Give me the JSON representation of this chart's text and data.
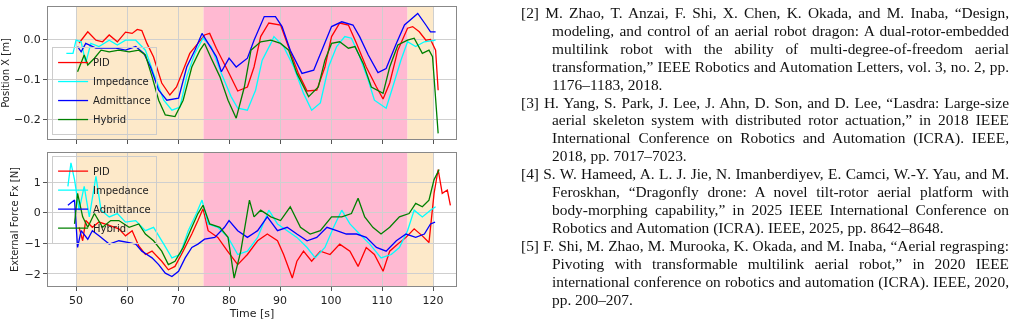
{
  "chart_data": [
    {
      "type": "line",
      "ylabel": "Position X [m]",
      "xlim": [
        44.5,
        124.5
      ],
      "ylim": [
        -0.25,
        0.08
      ],
      "xticks": [
        50,
        60,
        70,
        80,
        90,
        100,
        110,
        120
      ],
      "yticks": [
        {
          "value": -0.2,
          "label": "−0.2"
        },
        {
          "value": -0.1,
          "label": "−0.1"
        },
        {
          "value": 0,
          "label": "0.0"
        }
      ],
      "tick_labels": "y",
      "grid": true,
      "legend": "bottom left",
      "bands": [
        {
          "axis": "x",
          "from": 50,
          "to": 75,
          "color": "#fde9c9"
        },
        {
          "axis": "x",
          "from": 75,
          "to": 115,
          "color": "#ffb9d2"
        },
        {
          "axis": "x",
          "from": 115,
          "to": 120,
          "color": "#fde9c9"
        }
      ],
      "series": [
        {
          "name": "PID",
          "color": "#ff0000",
          "x": [
            50.6,
            52.3,
            53.9,
            55.2,
            56.5,
            58.1,
            59.7,
            61,
            62,
            62.9,
            63.9,
            65.2,
            66.8,
            68.4,
            69.7,
            71,
            72.3,
            73.9,
            75.2,
            76.2,
            77.5,
            79.7,
            81.7,
            83.6,
            84.9,
            86.2,
            87.8,
            90.1,
            91.4,
            93.6,
            95.3,
            97.2,
            98.8,
            100.1,
            101.7,
            103.4,
            105,
            106.9,
            108.9,
            110.2,
            111.5,
            113.1,
            115,
            116,
            117.3,
            118.6,
            119.5,
            120.5,
            121
          ],
          "values": [
            -0.01,
            0.018,
            -0.003,
            -0.007,
            0.01,
            -0.007,
            0.017,
            0.014,
            0.024,
            0.021,
            -0.011,
            -0.045,
            -0.11,
            -0.14,
            -0.12,
            -0.078,
            -0.036,
            -0.011,
            0.01,
            0.014,
            -0.023,
            -0.078,
            -0.13,
            -0.12,
            -0.07,
            0.006,
            0.04,
            0.035,
            -0.011,
            -0.086,
            -0.13,
            -0.128,
            -0.07,
            0.006,
            0.04,
            0.035,
            -0.011,
            -0.07,
            -0.12,
            -0.15,
            -0.11,
            -0.028,
            0.027,
            0.031,
            0.018,
            -0.003,
            -0.001,
            -0.028,
            -0.128
          ]
        },
        {
          "name": "Impedance",
          "color": "#00ffff",
          "x": [
            48.1,
            49.4,
            50,
            51,
            51.9,
            52.9,
            54.5,
            56.5,
            58.1,
            59.7,
            61.7,
            63.6,
            65.2,
            67.2,
            68.8,
            70.4,
            71.7,
            73.3,
            74.9,
            76.5,
            78.5,
            80.4,
            81.7,
            83.6,
            85.2,
            86.5,
            88.2,
            88.8,
            90.7,
            92.7,
            94.6,
            96.2,
            97.9,
            99.5,
            101.1,
            102.7,
            104,
            105.6,
            107.3,
            108.5,
            110.8,
            112.1,
            113.7,
            115,
            116.6,
            118.3,
            120.5
          ],
          "values": [
            -0.036,
            -0.036,
            -0.003,
            -0.007,
            -0.06,
            -0.011,
            -0.019,
            -0.003,
            -0.015,
            -0.003,
            -0.003,
            -0.028,
            -0.086,
            -0.153,
            -0.178,
            -0.17,
            -0.094,
            -0.036,
            0.002,
            -0.019,
            -0.086,
            -0.144,
            -0.173,
            -0.178,
            -0.128,
            -0.053,
            -0.011,
            0.006,
            -0.019,
            -0.07,
            -0.136,
            -0.178,
            -0.16,
            -0.07,
            -0.019,
            0.006,
            0.002,
            -0.044,
            -0.103,
            -0.153,
            -0.173,
            -0.12,
            -0.053,
            -0.007,
            -0.019,
            -0.007,
            -0.003
          ]
        },
        {
          "name": "Admittance",
          "color": "#0000ff",
          "x": [
            50.3,
            51,
            51.9,
            53.9,
            55.8,
            57.8,
            59.7,
            61.7,
            63.3,
            64.6,
            66.2,
            67.8,
            70.1,
            71.7,
            73.3,
            74.7,
            75.9,
            77.5,
            78.5,
            80,
            81.4,
            83.6,
            84.9,
            86.9,
            89.1,
            90.4,
            92,
            94.3,
            96.6,
            98.5,
            100.1,
            102.1,
            104.3,
            105.6,
            107.3,
            109.2,
            110.8,
            112.8,
            114.4,
            117,
            118.6,
            119.5,
            120.5
          ],
          "values": [
            -0.019,
            -0.032,
            -0.011,
            -0.023,
            -0.023,
            -0.023,
            -0.028,
            -0.019,
            -0.036,
            -0.07,
            -0.128,
            -0.153,
            -0.148,
            -0.07,
            -0.028,
            0.014,
            -0.011,
            -0.044,
            -0.082,
            -0.048,
            -0.07,
            -0.048,
            -0.003,
            0.056,
            0.056,
            0.031,
            -0.028,
            -0.086,
            -0.078,
            -0.019,
            0.031,
            0.043,
            0.035,
            0.006,
            -0.04,
            -0.084,
            -0.074,
            -0.011,
            0.035,
            0.064,
            0.035,
            0.018,
            0.018
          ]
        },
        {
          "name": "Hybrid",
          "color": "#008000",
          "x": [
            50.3,
            51.6,
            52.3,
            53.6,
            54.9,
            56.5,
            58.4,
            60.4,
            62.3,
            63.6,
            64.9,
            66.2,
            67.5,
            69.4,
            71,
            72.7,
            74.3,
            75.2,
            76.5,
            78.2,
            79.8,
            81.4,
            83,
            84.3,
            86.2,
            88.2,
            90.1,
            91.7,
            93.3,
            95.6,
            97.5,
            98.8,
            100.1,
            101.7,
            103.4,
            104.7,
            106.3,
            107.9,
            110.2,
            111.5,
            113.1,
            115,
            116.3,
            117.9,
            119.2,
            119.9,
            121
          ],
          "values": [
            -0.082,
            -0.04,
            -0.065,
            -0.048,
            -0.028,
            -0.032,
            -0.028,
            -0.032,
            -0.028,
            -0.04,
            -0.094,
            -0.153,
            -0.19,
            -0.194,
            -0.153,
            -0.07,
            -0.028,
            -0.011,
            -0.048,
            -0.094,
            -0.153,
            -0.198,
            -0.12,
            -0.028,
            -0.007,
            -0.003,
            -0.011,
            -0.028,
            -0.086,
            -0.144,
            -0.12,
            -0.053,
            -0.011,
            -0.007,
            -0.023,
            -0.019,
            -0.061,
            -0.12,
            -0.136,
            -0.07,
            -0.015,
            -0.003,
            0.002,
            -0.036,
            -0.028,
            -0.044,
            -0.236
          ]
        }
      ]
    },
    {
      "type": "line",
      "xlabel": "Time [s]",
      "ylabel": "External Force Fx [N]",
      "xlim": [
        44.5,
        124.5
      ],
      "ylim": [
        -2.4,
        1.95
      ],
      "xticks": [
        50,
        60,
        70,
        80,
        90,
        100,
        110,
        120
      ],
      "yticks": [
        {
          "value": -2,
          "label": "−2"
        },
        {
          "value": -1,
          "label": "−1"
        },
        0,
        1
      ],
      "grid": true,
      "legend": "top left",
      "bands": [
        {
          "axis": "x",
          "from": 50,
          "to": 75,
          "color": "#fde9c9"
        },
        {
          "axis": "x",
          "from": 75,
          "to": 115,
          "color": "#ffb9d2"
        },
        {
          "axis": "x",
          "from": 115,
          "to": 120,
          "color": "#fde9c9"
        }
      ],
      "series": [
        {
          "name": "PID",
          "color": "#ff0000",
          "x": [
            50.6,
            51.3,
            51.9,
            53.2,
            54.5,
            56.5,
            58.4,
            59.7,
            61,
            62.3,
            63.6,
            64.9,
            66.8,
            68.1,
            69.4,
            71,
            72.7,
            73.9,
            74.9,
            75.9,
            77.8,
            79.7,
            81.7,
            83.6,
            85.6,
            87.5,
            89.5,
            90.7,
            92.4,
            93.3,
            94.6,
            96.2,
            97.9,
            99.8,
            101.7,
            103.7,
            105.3,
            106.9,
            108.5,
            110.2,
            111.5,
            113.1,
            114.7,
            116.3,
            117.9,
            119.2,
            120.2,
            121,
            121.8,
            122.8,
            123.4
          ],
          "values": [
            -0.48,
            -0.92,
            -0.26,
            -0.48,
            -0.31,
            -0.42,
            -0.53,
            -0.76,
            -0.59,
            -1.09,
            -1.37,
            -1.26,
            -1.59,
            -1.87,
            -1.76,
            -1.26,
            -0.7,
            -0.26,
            0.13,
            -0.59,
            -0.81,
            -1.26,
            -1.7,
            -1.37,
            -0.92,
            -0.7,
            -0.92,
            -1.37,
            -2.14,
            -1.59,
            -1.26,
            -1.59,
            -1.26,
            -1.37,
            -1.03,
            -1.26,
            -1.76,
            -1.14,
            -1.37,
            -1.92,
            -1.26,
            -1.03,
            -0.81,
            -0.53,
            -0.76,
            -0.98,
            0.63,
            1.41,
            0.63,
            0.74,
            0.24
          ]
        },
        {
          "name": "Impedance",
          "color": "#00ffff",
          "x": [
            48.4,
            49,
            49.7,
            50.6,
            51.6,
            52.6,
            53.9,
            54.9,
            56.5,
            58.1,
            59.7,
            61.7,
            63.6,
            65.2,
            67.2,
            68.8,
            70.4,
            72,
            73.6,
            74.7,
            75.9,
            77.8,
            79.8,
            81.7,
            83.6,
            85.6,
            87.8,
            89.5,
            91.4,
            93.3,
            95.3,
            96.9,
            98.8,
            100.5,
            102.1,
            103.7,
            105.6,
            107.6,
            109.8,
            111.8,
            113.4,
            115,
            116.3,
            117.9,
            119.5,
            120.5
          ],
          "values": [
            0.86,
            1.63,
            1.08,
            0.08,
            0.86,
            -0.14,
            1.19,
            0.08,
            -0.14,
            -0.03,
            -0.31,
            -0.26,
            -0.59,
            -0.48,
            -1.03,
            -1.48,
            -1.37,
            -0.59,
            -0.03,
            0.41,
            -0.37,
            -0.48,
            -0.81,
            -1.37,
            -1.26,
            -0.81,
            0.08,
            -0.37,
            -0.59,
            -0.81,
            -1.14,
            -1.48,
            -1.14,
            -0.48,
            0.08,
            -0.37,
            -0.7,
            -1.03,
            -1.48,
            -1.37,
            -1.14,
            -0.59,
            0.08,
            -0.14,
            0.08,
            0.19
          ]
        },
        {
          "name": "Admittance",
          "color": "#0000ff",
          "x": [
            48.4,
            49.7,
            50.3,
            51,
            52.3,
            53.2,
            54.5,
            56.5,
            58.4,
            60.4,
            61.7,
            62.9,
            64.9,
            66.2,
            67.5,
            68.8,
            70.1,
            71.4,
            72.7,
            73.9,
            75.2,
            77.2,
            79.1,
            80,
            81.7,
            83.6,
            85.6,
            87.5,
            89.5,
            91.4,
            93.3,
            95.3,
            97.2,
            99.2,
            101.1,
            103,
            105,
            106.9,
            108.9,
            110.8,
            112.8,
            114.7,
            116.6,
            118.3,
            119.5,
            120.4
          ],
          "values": [
            0.24,
            0.41,
            -1.14,
            -0.59,
            -0.87,
            -0.59,
            -0.76,
            -1.03,
            -0.92,
            -0.98,
            -1.03,
            -1.26,
            -1.48,
            -1.7,
            -1.98,
            -2.09,
            -1.92,
            -1.48,
            -1.14,
            -1.03,
            -0.87,
            -0.81,
            -0.48,
            -0.26,
            -0.59,
            -0.81,
            -0.59,
            -0.14,
            -0.59,
            -0.48,
            -0.7,
            -0.92,
            -0.81,
            -0.48,
            -0.59,
            -0.7,
            -0.7,
            -0.81,
            -1.14,
            -1.26,
            -0.92,
            -0.7,
            -0.81,
            -0.7,
            -0.37,
            -0.31
          ]
        },
        {
          "name": "Hybrid",
          "color": "#008000",
          "x": [
            49.7,
            50.3,
            51.3,
            52.3,
            53.6,
            55.2,
            56.8,
            58.4,
            60.4,
            62.3,
            63.6,
            65.2,
            66.8,
            68.1,
            69.4,
            71,
            72.7,
            73.9,
            74.9,
            76.2,
            78.2,
            79.8,
            81,
            82.3,
            84,
            84.9,
            86.2,
            88.2,
            90.1,
            92,
            94,
            95.9,
            97.9,
            100.1,
            102.1,
            104,
            105.3,
            106.6,
            108.2,
            109.8,
            111.5,
            113.4,
            115.3,
            116.6,
            117.9,
            119.2,
            120.2,
            121.2
          ],
          "values": [
            -0.37,
            0.63,
            -0.14,
            -0.48,
            -0.03,
            -0.48,
            -0.26,
            -0.26,
            -0.48,
            -0.37,
            -0.7,
            -0.92,
            -1.26,
            -1.7,
            -1.59,
            -1.14,
            -0.48,
            -0.03,
            0.24,
            -0.37,
            -0.48,
            -0.81,
            -2.14,
            -1.26,
            0.41,
            -0.14,
            0.08,
            -0.14,
            -0.26,
            0.19,
            -0.48,
            -0.7,
            -0.59,
            -0.14,
            -0.14,
            -0.03,
            0.47,
            -0.14,
            -0.48,
            -0.7,
            -0.48,
            -0.14,
            -0.03,
            0.3,
            0.19,
            0.41,
            1.08,
            1.41
          ]
        }
      ]
    },
    {
      "type": "other",
      "annotations": [
        "[2] M. Zhao, T. Anzai, F. Shi, X. Chen, K. Okada, and M. Inaba, “Design, modeling, and control of an aerial robot dragon: A dual-rotor-embedded multilink robot with the ability of multi-degree-of-freedom aerial transformation,” IEEE Robotics and Automation Letters, vol. 3, no. 2, pp. 1176–1183, 2018.",
        "[3] H. Yang, S. Park, J. Lee, J. Ahn, D. Son, and D. Lee, “Lasdra: Large-size aerial skeleton system with distributed rotor actuation,” in 2018 IEEE International Conference on Robotics and Automation (ICRA). IEEE, 2018, pp. 7017–7023.",
        "[4] S. W. Hameed, A. L. J. Jie, N. Imanberdiyev, E. Camci, W.-Y. Yau, and M. Feroskhan, “Dragonfly drone: A novel tilt-rotor aerial platform with body-morphing capability,” in 2025 IEEE International Conference on Robotics and Automation (ICRA). IEEE, 2025, pp. 8642–8648.",
        "[5] F. Shi, M. Zhao, M. Murooka, K. Okada, and M. Inaba, “Aerial regrasping: Pivoting with transformable multilink aerial robot,” in 2020 IEEE international conference on robotics and automation (ICRA). IEEE, 2020, pp. 200–207."
      ]
    }
  ]
}
